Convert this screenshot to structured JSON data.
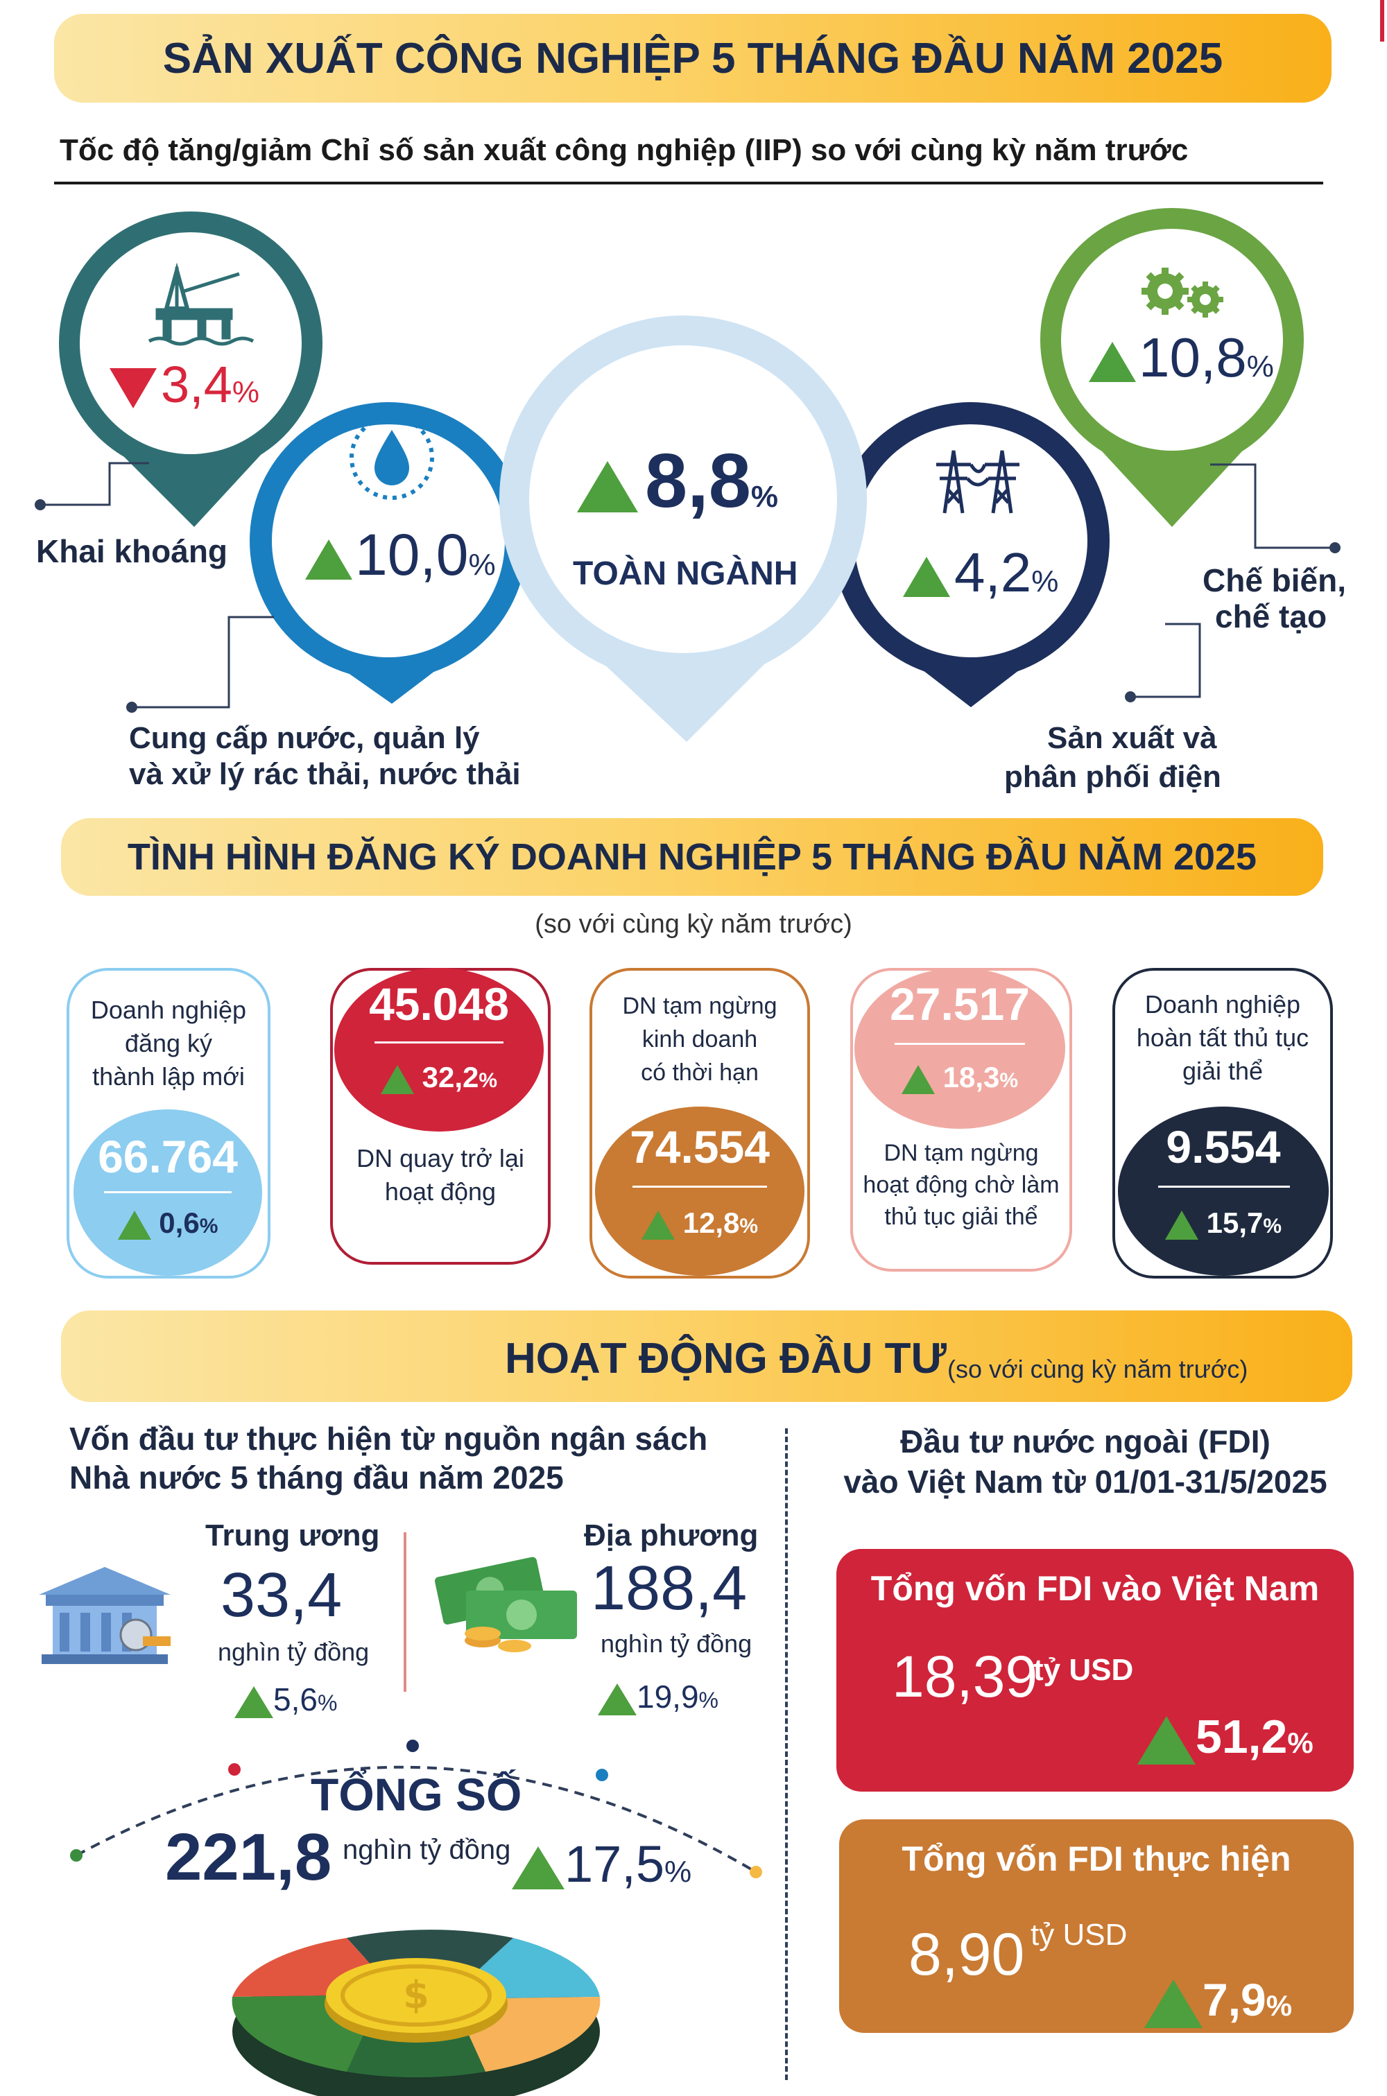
{
  "title1": "SẢN XUẤT CÔNG NGHIỆP 5 THÁNG ĐẦU NĂM 2025",
  "subtitle1": "Tốc độ tăng/giảm Chỉ số sản xuất công nghiệp (IIP) so với cùng kỳ năm trước",
  "iip": {
    "mining": {
      "value": "3,4",
      "unit": "%",
      "label": "Khai khoáng",
      "direction": "down"
    },
    "water": {
      "value": "10,0",
      "unit": "%",
      "label_line1": "Cung cấp nước, quản lý",
      "label_line2": "và xử lý rác thải, nước thải",
      "direction": "up"
    },
    "total": {
      "value": "8,8",
      "unit": "%",
      "label": "TOÀN NGÀNH",
      "direction": "up"
    },
    "power": {
      "value": "4,2",
      "unit": "%",
      "label_line1": "Sản xuất và",
      "label_line2": "phân phối điện",
      "direction": "up"
    },
    "manufacturing": {
      "value": "10,8",
      "unit": "%",
      "label_line1": "Chế biến,",
      "label_line2": "chế tạo",
      "direction": "up"
    }
  },
  "title2": "TÌNH HÌNH ĐĂNG KÝ DOANH NGHIỆP 5 THÁNG ĐẦU NĂM 2025",
  "subtitle2": "(so với cùng kỳ năm trước)",
  "enterprises": [
    {
      "label_lines": [
        "Doanh nghiệp",
        "đăng ký",
        "thành lập mới"
      ],
      "value": "66.764",
      "change": "0,6",
      "unit": "%"
    },
    {
      "label_lines": [
        "DN quay trở lại",
        "hoạt động"
      ],
      "value": "45.048",
      "change": "32,2",
      "unit": "%"
    },
    {
      "label_lines": [
        "DN tạm ngừng",
        "kinh doanh",
        "có thời hạn"
      ],
      "value": "74.554",
      "change": "12,8",
      "unit": "%"
    },
    {
      "label_lines": [
        "DN tạm ngừng",
        "hoạt động chờ làm",
        "thủ tục giải thể"
      ],
      "value": "27.517",
      "change": "18,3",
      "unit": "%"
    },
    {
      "label_lines": [
        "Doanh nghiệp",
        "hoàn tất thủ tục",
        "giải thể"
      ],
      "value": "9.554",
      "change": "15,7",
      "unit": "%"
    }
  ],
  "title3": "HOẠT ĐỘNG ĐẦU TƯ",
  "title3_note": "(so với cùng kỳ năm trước)",
  "budget": {
    "heading_line1": "Vốn đầu tư thực hiện từ nguồn ngân sách",
    "heading_line2": "Nhà nước 5 tháng đầu năm 2025",
    "central": {
      "label": "Trung ương",
      "value": "33,4",
      "unit": "nghìn tỷ đồng",
      "change": "5,6",
      "pct": "%"
    },
    "local": {
      "label": "Địa phương",
      "value": "188,4",
      "unit": "nghìn tỷ đồng",
      "change": "19,9",
      "pct": "%"
    },
    "total": {
      "label": "TỔNG SỐ",
      "value": "221,8",
      "unit": "nghìn tỷ đồng",
      "change": "17,5",
      "pct": "%"
    }
  },
  "fdi": {
    "heading_line1": "Đầu tư nước ngoài (FDI)",
    "heading_line2": "vào Việt Nam từ 01/01-31/5/2025",
    "registered": {
      "label": "Tổng vốn FDI vào Việt Nam",
      "value": "18,39",
      "unit": "tỷ USD",
      "change": "51,2",
      "pct": "%"
    },
    "disbursed": {
      "label": "Tổng vốn FDI thực hiện",
      "value": "8,90",
      "unit": "tỷ USD",
      "change": "7,9",
      "pct": "%"
    }
  },
  "colors": {
    "teal": "#2f6f73",
    "blue": "#1a7fc0",
    "lightblue": "#cfe3f3",
    "navy": "#1d2f5c",
    "green": "#6aa443",
    "red": "#d0243a",
    "brown": "#c97a33",
    "pink": "#f0aaa3",
    "dark": "#1f2a3f",
    "sky": "#8ccdf0"
  }
}
